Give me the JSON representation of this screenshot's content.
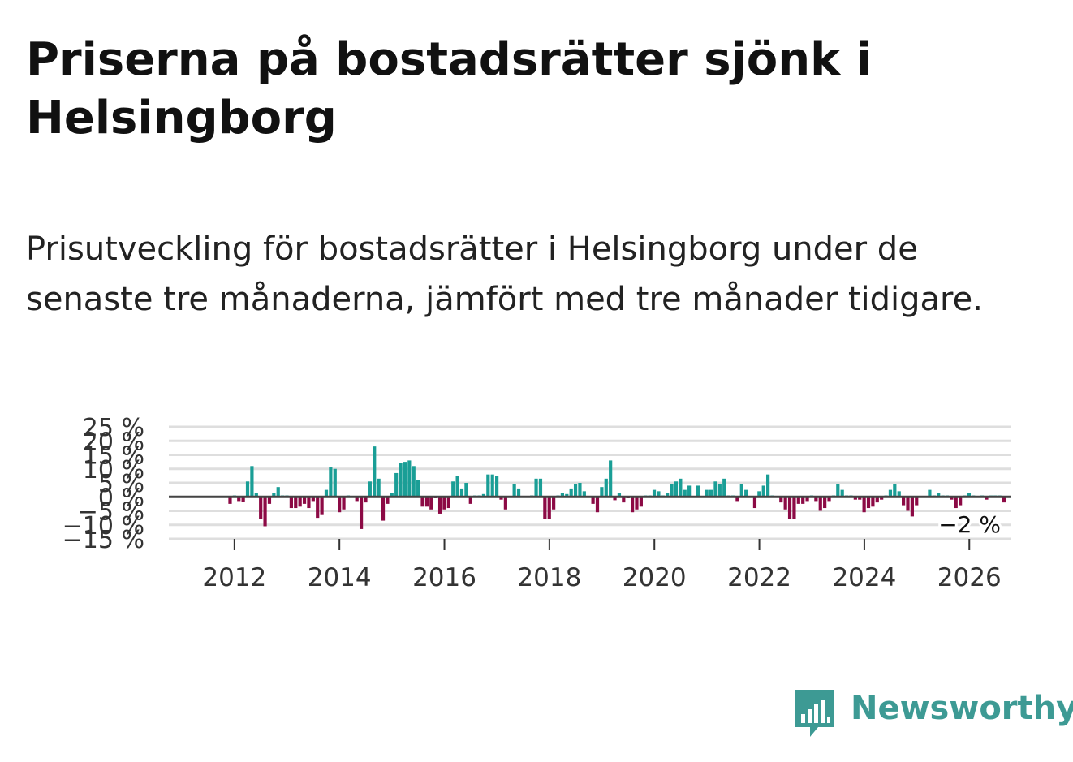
{
  "title": "Priserna på bostadsrätter sjönk i Helsingborg",
  "subtitle": "Prisutveckling för bostadsrätter i Helsingborg under de senaste tre månaderna, jämfört med tre månader tidigare.",
  "brand": {
    "name": "Newsworthy",
    "color": "#3d9a94"
  },
  "chart_data": {
    "type": "bar",
    "title": "Priserna på bostadsrätter sjönk i Helsingborg",
    "xlabel": "",
    "ylabel": "",
    "ylim": [
      -15,
      25
    ],
    "grid": true,
    "y_ticks": [
      {
        "value": 25,
        "label": "25 %"
      },
      {
        "value": 20,
        "label": "20 %"
      },
      {
        "value": 15,
        "label": "15 %"
      },
      {
        "value": 10,
        "label": "10 %"
      },
      {
        "value": 5,
        "label": "5 %"
      },
      {
        "value": 0,
        "label": "0 %"
      },
      {
        "value": -5,
        "label": "−5 %"
      },
      {
        "value": -10,
        "label": "−10 %"
      },
      {
        "value": -15,
        "label": "−15 %"
      }
    ],
    "x_ticks": [
      {
        "value": 2012,
        "label": "2012"
      },
      {
        "value": 2014,
        "label": "2014"
      },
      {
        "value": 2016,
        "label": "2016"
      },
      {
        "value": 2018,
        "label": "2018"
      },
      {
        "value": 2020,
        "label": "2020"
      },
      {
        "value": 2022,
        "label": "2022"
      },
      {
        "value": 2024,
        "label": "2024"
      },
      {
        "value": 2026,
        "label": "2026"
      }
    ],
    "xlim": [
      2010.75,
      2026.8
    ],
    "start": 2011.917,
    "step": 0.0833,
    "colors": {
      "positive": "#1a9e96",
      "negative": "#8c0a45"
    },
    "values": [
      -2.5,
      0.5,
      -1.5,
      -1.8,
      5.5,
      11,
      1.5,
      -8,
      -10.5,
      -2.5,
      1.5,
      3.5,
      0.5,
      0.5,
      -4,
      -4,
      -3.5,
      -2.5,
      -4,
      -1.5,
      -7.5,
      -6.5,
      2.5,
      10.5,
      10,
      -5.5,
      -4.5,
      0.5,
      0.2,
      -1.5,
      -11.5,
      -2,
      5.5,
      18,
      6.5,
      -8.5,
      -2.5,
      1.5,
      8.5,
      12,
      12.5,
      13,
      11,
      6,
      -3.5,
      -3.5,
      -4.5,
      -0.5,
      -6,
      -4.5,
      -4,
      5.5,
      7.5,
      3,
      5,
      -2.5,
      0.5,
      0.5,
      1,
      8,
      8,
      7.5,
      -1,
      -4.5,
      0.2,
      4.5,
      3,
      0.2,
      0.2,
      0.5,
      6.5,
      6.5,
      -8,
      -8,
      -4.5,
      0.5,
      1.5,
      1,
      3,
      4.5,
      5,
      2,
      0.3,
      -2.5,
      -5.5,
      3.5,
      6.5,
      13,
      -1.2,
      1.5,
      -2,
      -0.5,
      -5.5,
      -4.5,
      -3.5,
      0.5,
      0.5,
      2.5,
      2,
      0.5,
      1.5,
      4.5,
      5.5,
      6.5,
      2.5,
      4,
      0.3,
      4,
      0.3,
      2.5,
      2.5,
      5.5,
      4.5,
      6.5,
      0.5,
      0.5,
      -1.5,
      4.5,
      2.5,
      0.3,
      -4,
      2,
      4,
      8,
      0.5,
      0.3,
      -2,
      -4.5,
      -8,
      -8,
      -2.5,
      -2.5,
      -1.5,
      0.5,
      -1.5,
      -5,
      -4,
      -1.5,
      0.5,
      4.5,
      2.5,
      0.5,
      0.5,
      -1,
      -1,
      -5.5,
      -4,
      -3.5,
      -2,
      -1,
      0.5,
      2.5,
      4.5,
      2,
      -3,
      -5,
      -7,
      -3,
      0.3,
      0.3,
      2.5,
      0.5,
      1.5,
      0.5,
      0.5,
      -1,
      -4,
      -3,
      0.5,
      1.5,
      0.5,
      0.2,
      0.5,
      -1,
      0.5,
      0.5,
      0.5,
      -2
    ],
    "annotation": {
      "label": "−2 %",
      "value": -2
    }
  }
}
